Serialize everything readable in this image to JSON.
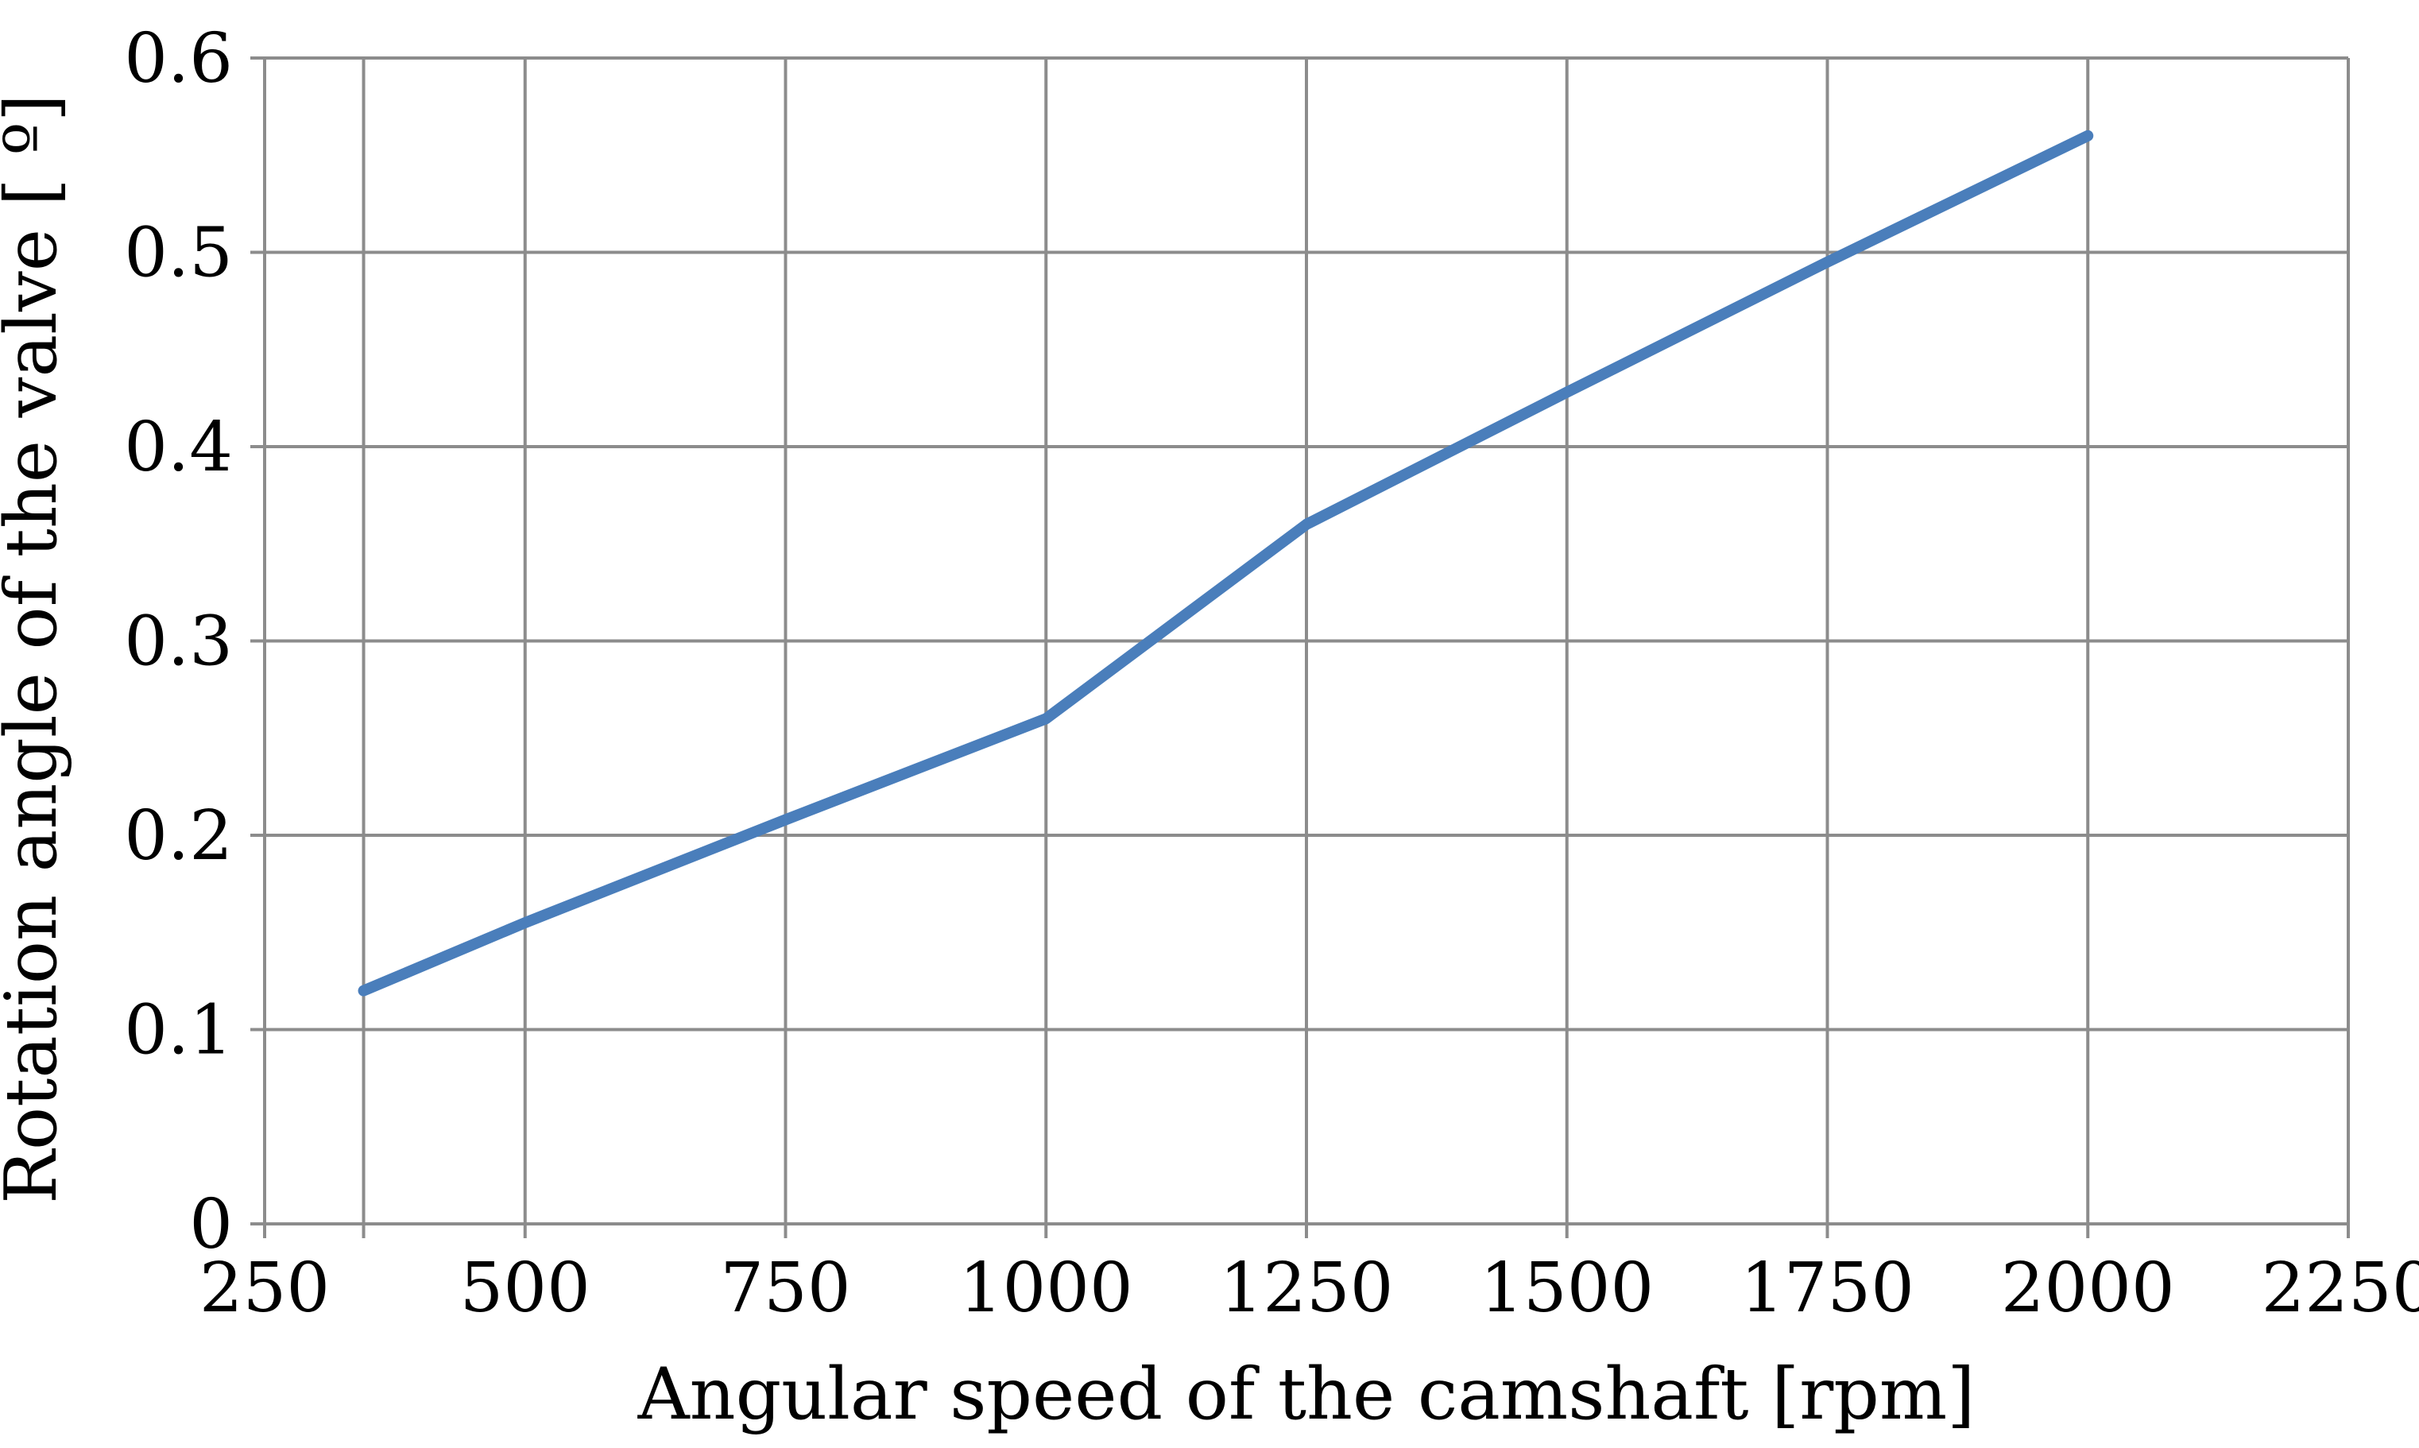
{
  "chart_data": {
    "type": "line",
    "title": "",
    "xlabel": "Angular speed of the camshaft [rpm]",
    "ylabel": "Rotation angle of the valve  [ º]",
    "xlim": [
      250,
      2250
    ],
    "ylim": [
      0,
      0.6
    ],
    "x_ticks": [
      250,
      500,
      750,
      1000,
      1250,
      1500,
      1750,
      2000,
      2250
    ],
    "x_tick_labels": [
      "250",
      "500",
      "750",
      "1000",
      "1250",
      "1500",
      "1750",
      "2000",
      "2250"
    ],
    "y_ticks": [
      0,
      0.1,
      0.2,
      0.3,
      0.4,
      0.5,
      0.6
    ],
    "y_tick_labels": [
      "0",
      "0.1",
      "0.2",
      "0.3",
      "0.4",
      "0.5",
      "0.6"
    ],
    "grid": true,
    "legend": "none",
    "series": [
      {
        "name": "Rotation angle",
        "color": "#4a7ebb",
        "x": [
          345,
          500,
          750,
          1000,
          1250,
          1500,
          1750,
          2000
        ],
        "y": [
          0.12,
          0.155,
          0.208,
          0.26,
          0.36,
          0.428,
          0.495,
          0.56
        ]
      }
    ]
  }
}
